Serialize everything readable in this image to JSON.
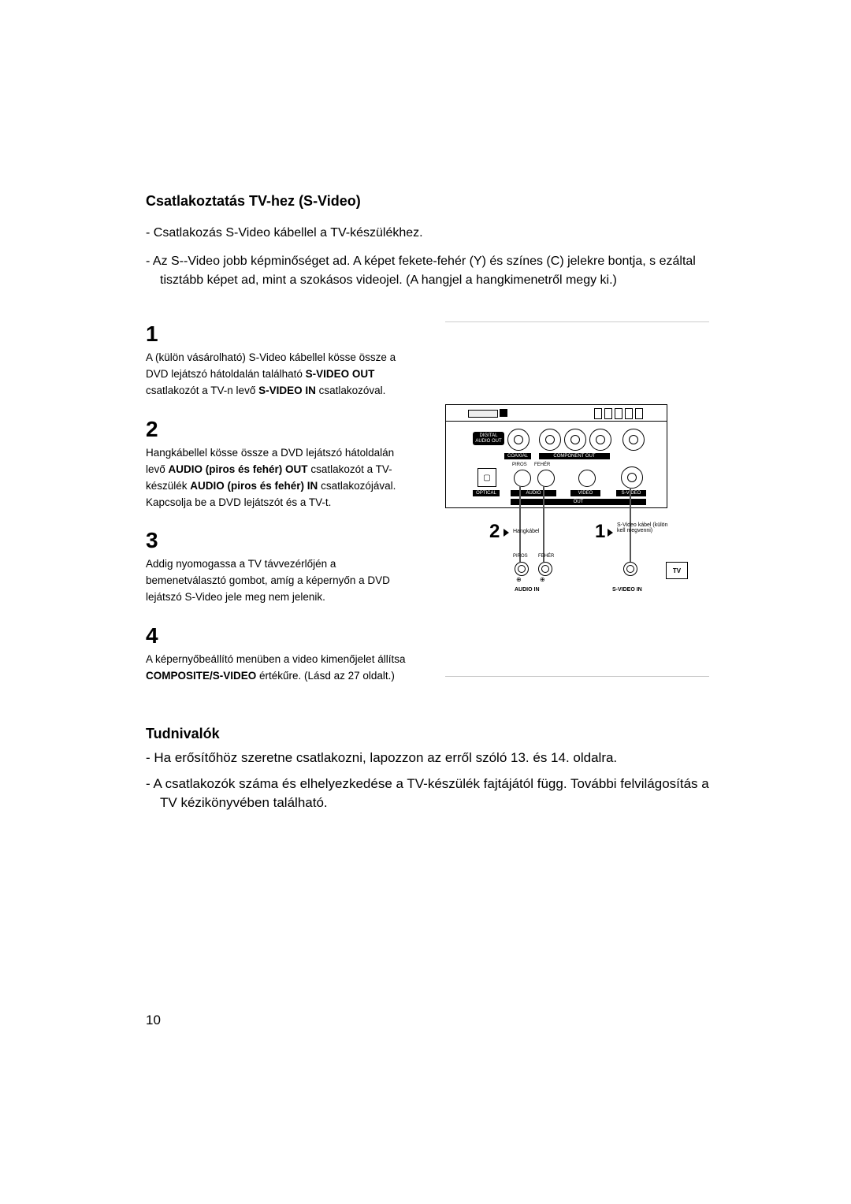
{
  "page_number": "10",
  "section_title": "Csatlakoztatás TV-hez (S-Video)",
  "intro": [
    "Csatlakozás S-Video kábellel a TV-készülékhez.",
    "Az S--Video jobb képminőséget ad. A képet fekete-fehér (Y) és színes (C) jelekre bontja, s ezáltal tisztább képet ad, mint a szokásos videojel. (A hangjel a hangkimenetről megy ki.)"
  ],
  "steps": [
    {
      "num": "1",
      "parts": [
        {
          "t": "A (külön vásárolható) S-Video kábellel kösse össze a DVD lejátszó hátoldalán található ",
          "b": false
        },
        {
          "t": "S-VIDEO OUT",
          "b": true
        },
        {
          "t": " csatlakozót a TV-n levő ",
          "b": false
        },
        {
          "t": "S-VIDEO IN",
          "b": true
        },
        {
          "t": " csatlakozóval.",
          "b": false
        }
      ]
    },
    {
      "num": "2",
      "parts": [
        {
          "t": "Hangkábellel kösse össze a DVD lejátszó hátoldalán levő ",
          "b": false
        },
        {
          "t": "AUDIO (piros és fehér) OUT",
          "b": true
        },
        {
          "t": " csatlakozót a TV-készülék ",
          "b": false
        },
        {
          "t": "AUDIO (piros és fehér) IN",
          "b": true
        },
        {
          "t": " csatlakozójával.  Kapcsolja be a DVD lejátszót és a TV-t.",
          "b": false
        }
      ]
    },
    {
      "num": "3",
      "parts": [
        {
          "t": "Addig nyomogassa a TV távvezérlőjén a bemenetválasztó gombot, amíg a képernyőn a DVD lejátszó S-Video jele meg nem jelenik.",
          "b": false
        }
      ]
    },
    {
      "num": "4",
      "parts": [
        {
          "t": "A képernyőbeállító menüben a video kimenőjelet állítsa ",
          "b": false
        },
        {
          "t": "COMPOSITE/S-VIDEO",
          "b": true
        },
        {
          "t": " értékűre. (Lásd az 27 oldalt.)",
          "b": false
        }
      ]
    }
  ],
  "notes_title": "Tudnivalók",
  "notes": [
    "Ha erősítőhöz szeretne csatlakozni, lapozzon az erről szóló 13. és 14. oldalra.",
    "A csatlakozók száma és elhelyezkedése a TV-készülék fajtájától függ. További felvilágosítás a TV kézikönyvében található."
  ],
  "diagram": {
    "type": "diagram",
    "colors": {
      "line": "#000000",
      "bg": "#ffffff",
      "hr": "#cccccc"
    },
    "labels": {
      "digital_audio": "DIGITAL AUDIO OUT",
      "coaxial": "COAXIAL",
      "component": "COMPONENT OUT",
      "optical": "OPTICAL",
      "audio": "AUDIO",
      "video": "VIDEO",
      "svideo": "S-VIDEO",
      "out": "OUT",
      "piros": "PIROS",
      "feher": "FEHÉR",
      "hangkabel": "Hangkábel",
      "svideo_cable": "S-Video kábel (külön kell megvenni)",
      "audio_in": "AUDIO IN",
      "svideo_in": "S-VIDEO IN",
      "tv": "TV",
      "num1": "1",
      "num2": "2"
    }
  }
}
